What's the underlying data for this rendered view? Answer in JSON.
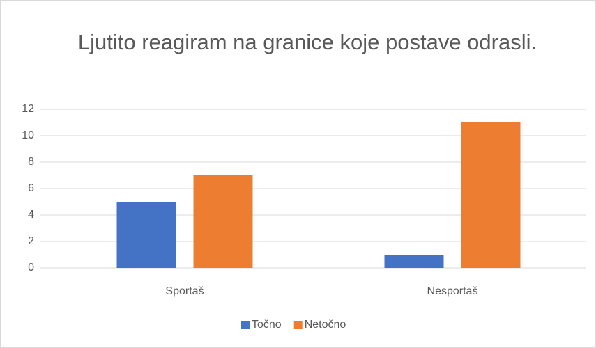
{
  "chart_data": {
    "type": "bar",
    "title": "Ljutito reagiram na granice koje postave odrasli.",
    "categories": [
      "Sportaš",
      "Nesportaš"
    ],
    "series": [
      {
        "name": "Točno",
        "color": "#4472c4",
        "values": [
          5,
          1
        ]
      },
      {
        "name": "Netočno",
        "color": "#ed7d31",
        "values": [
          7,
          11
        ]
      }
    ],
    "ylim": [
      0,
      12
    ],
    "yticks": [
      0,
      2,
      4,
      6,
      8,
      10,
      12
    ],
    "grid": true,
    "legend": "bottom"
  }
}
